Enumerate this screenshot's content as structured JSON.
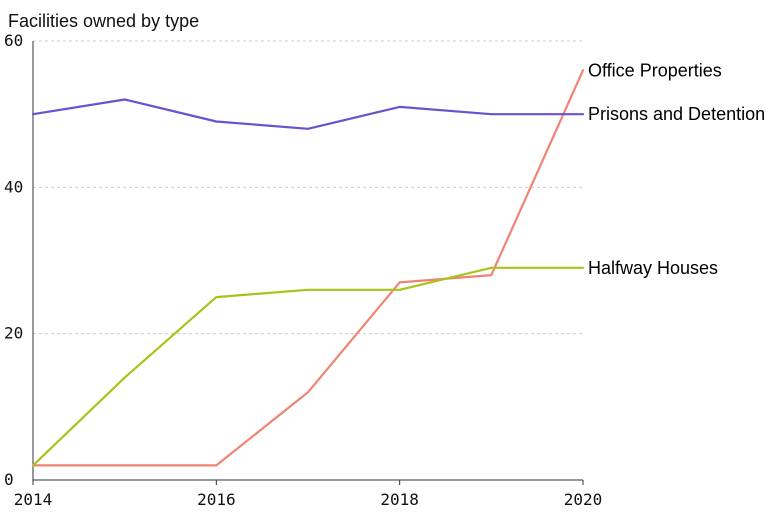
{
  "chart_data": {
    "type": "line",
    "title": "Facilities owned by type",
    "xlabel": "",
    "ylabel": "",
    "x": [
      2014,
      2015,
      2016,
      2017,
      2018,
      2019,
      2020
    ],
    "xlim": [
      2014,
      2020
    ],
    "ylim": [
      0,
      60
    ],
    "x_ticks": [
      "2014",
      "2016",
      "2018",
      "2020"
    ],
    "y_ticks": [
      "0",
      "20",
      "40",
      "60"
    ],
    "grid": "horizontal dashed",
    "legend": "direct labels at right end of lines",
    "series": [
      {
        "name": "Office Properties",
        "color": "#f08372",
        "values": [
          2,
          2,
          2,
          12,
          27,
          28,
          56
        ]
      },
      {
        "name": "Prisons and Detention",
        "color": "#6a51d0",
        "values": [
          50,
          52,
          49,
          48,
          51,
          50,
          50
        ]
      },
      {
        "name": "Halfway Houses",
        "color": "#a8c41b",
        "values": [
          2,
          14,
          25,
          26,
          26,
          29,
          29
        ]
      }
    ]
  }
}
